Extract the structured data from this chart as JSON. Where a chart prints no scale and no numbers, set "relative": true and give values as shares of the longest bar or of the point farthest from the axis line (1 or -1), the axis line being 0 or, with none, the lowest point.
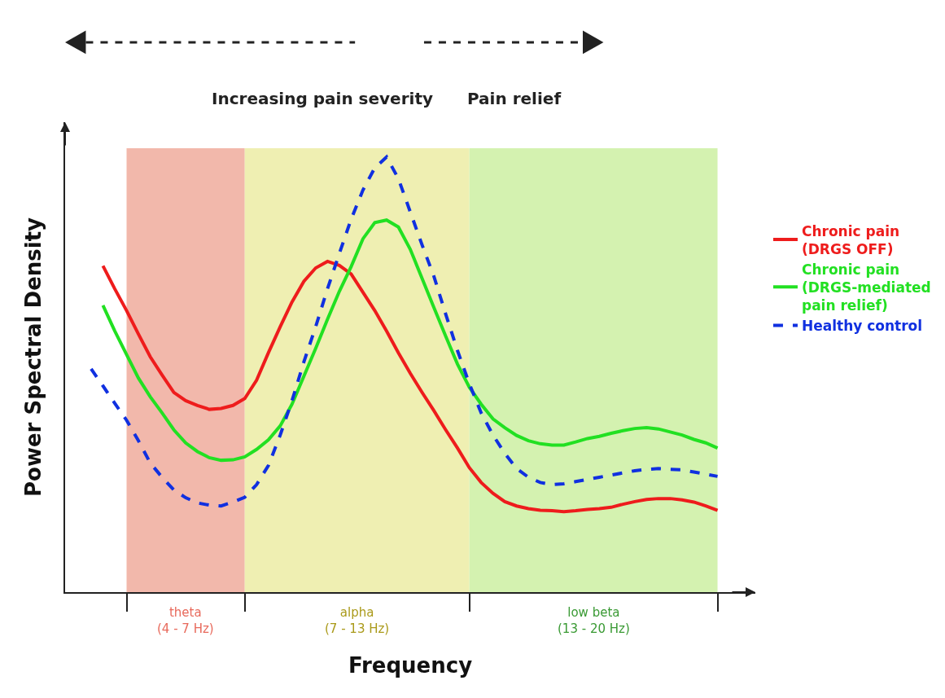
{
  "chart_data": {
    "type": "line",
    "relative": true,
    "xlabel": "Frequency",
    "ylabel": "Power Spectral Density",
    "categories": [
      null,
      null,
      null,
      null,
      null,
      null,
      null,
      null,
      null,
      null,
      null,
      null,
      null,
      null,
      null,
      null,
      null,
      null,
      null,
      null,
      null,
      null,
      null,
      null,
      null,
      null,
      null,
      null,
      null,
      null,
      null,
      null,
      null,
      null,
      null,
      null,
      null,
      null,
      null,
      null,
      null,
      null,
      null,
      null,
      null,
      null,
      null,
      null,
      null,
      null,
      null,
      null,
      null,
      null
    ],
    "annotations": [
      "Increasing pain severity",
      "Pain relief",
      "theta\n(4 - 7 Hz)",
      "alpha\n(7 - 13 Hz)",
      "low beta\n(13 - 20 Hz)"
    ],
    "legend": "right",
    "series": [
      {
        "name": "Chronic pain\n(DRGS OFF)",
        "color": "#ee1c1c",
        "line_style": "solid",
        "values": [
          null,
          0.75,
          0.697,
          0.647,
          0.593,
          0.541,
          0.499,
          0.459,
          0.44,
          0.429,
          0.42,
          0.422,
          0.429,
          0.445,
          0.487,
          0.55,
          0.61,
          0.667,
          0.714,
          0.745,
          0.76,
          0.751,
          0.731,
          0.689,
          0.647,
          0.6,
          0.55,
          0.503,
          0.459,
          0.417,
          0.373,
          0.331,
          0.286,
          0.252,
          0.227,
          0.208,
          0.198,
          0.192,
          0.188,
          0.187,
          0.185,
          0.187,
          0.19,
          0.192,
          0.195,
          0.202,
          0.208,
          0.213,
          0.215,
          0.215,
          0.212,
          0.207,
          0.198,
          0.188
        ]
      },
      {
        "name": "Chronic pain\n(DRGS-mediated\npain relief)",
        "color": "#22e022",
        "line_style": "solid",
        "values": [
          null,
          0.659,
          0.6,
          0.546,
          0.492,
          0.449,
          0.412,
          0.373,
          0.343,
          0.323,
          0.309,
          0.303,
          0.304,
          0.311,
          0.328,
          0.35,
          0.382,
          0.432,
          0.496,
          0.56,
          0.627,
          0.691,
          0.748,
          0.812,
          0.849,
          0.855,
          0.839,
          0.788,
          0.721,
          0.654,
          0.588,
          0.524,
          0.471,
          0.432,
          0.398,
          0.378,
          0.36,
          0.348,
          0.341,
          0.338,
          0.338,
          0.345,
          0.353,
          0.358,
          0.365,
          0.371,
          0.376,
          0.378,
          0.375,
          0.368,
          0.361,
          0.351,
          0.343,
          0.331
        ]
      },
      {
        "name": "Healthy control",
        "color": "#1030e0",
        "line_style": "dashed",
        "values": [
          0.513,
          0.474,
          0.434,
          0.395,
          0.348,
          0.297,
          0.264,
          0.235,
          0.217,
          0.205,
          0.2,
          0.198,
          0.207,
          0.218,
          0.247,
          0.291,
          0.361,
          0.44,
          0.529,
          0.61,
          0.697,
          0.778,
          0.857,
          0.924,
          0.975,
          1.0,
          0.95,
          0.874,
          0.798,
          0.726,
          0.639,
          0.555,
          0.479,
          0.412,
          0.361,
          0.319,
          0.284,
          0.264,
          0.252,
          0.247,
          0.249,
          0.254,
          0.259,
          0.264,
          0.269,
          0.274,
          0.279,
          0.282,
          0.284,
          0.282,
          0.281,
          0.276,
          0.271,
          0.266
        ]
      }
    ]
  }
}
